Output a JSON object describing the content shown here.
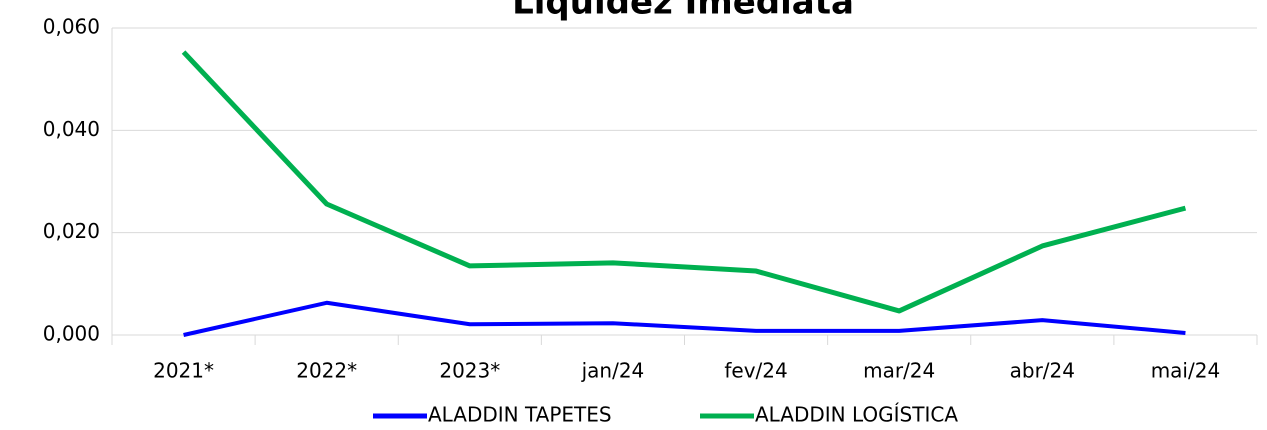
{
  "chart_data": {
    "type": "line",
    "title": "Liquidez Imediata",
    "categories": [
      "2021*",
      "2022*",
      "2023*",
      "jan/24",
      "fev/24",
      "mar/24",
      "abr/24",
      "mai/24"
    ],
    "series": [
      {
        "name": "ALADDIN TAPETES",
        "color": "#0000ff",
        "values": [
          0.0,
          0.0063,
          0.0021,
          0.0023,
          0.0008,
          0.0008,
          0.0029,
          0.0004
        ]
      },
      {
        "name": "ALADDIN LOGÍSTICA",
        "color": "#00b050",
        "values": [
          0.0553,
          0.0256,
          0.0135,
          0.0141,
          0.0125,
          0.0047,
          0.0174,
          0.0248
        ]
      }
    ],
    "ylim": [
      0,
      0.06
    ],
    "yticks": [
      {
        "value": 0,
        "label": "0,000"
      },
      {
        "value": 0.02,
        "label": "0,020"
      },
      {
        "value": 0.04,
        "label": "0,040"
      },
      {
        "value": 0.06,
        "label": "0,060"
      }
    ],
    "grid": true,
    "legend": "bottom"
  }
}
